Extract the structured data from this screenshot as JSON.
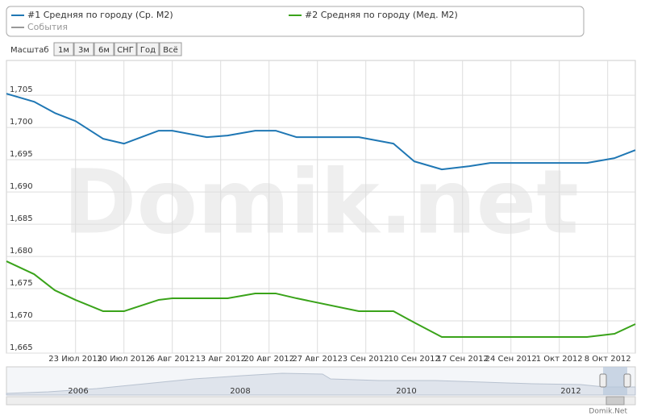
{
  "chart_data": {
    "type": "line",
    "watermark": "Domik.net",
    "legend": [
      {
        "name": "#1 Средняя по городу (Ср. М2)",
        "color": "#1f77b4"
      },
      {
        "name": "#2 Средняя по городу (Мед. М2)",
        "color": "#3aa31a"
      },
      {
        "name": "События",
        "color": "#999999"
      }
    ],
    "zoom_label": "Масштаб",
    "zoom_buttons": [
      "1м",
      "3м",
      "6м",
      "СНГ",
      "Год",
      "Всё"
    ],
    "x": [
      "2012-07-13",
      "2012-07-17",
      "2012-07-20",
      "2012-07-23",
      "2012-07-27",
      "2012-07-30",
      "2012-08-04",
      "2012-08-06",
      "2012-08-11",
      "2012-08-14",
      "2012-08-18",
      "2012-08-21",
      "2012-08-24",
      "2012-09-02",
      "2012-09-07",
      "2012-09-10",
      "2012-09-14",
      "2012-09-18",
      "2012-09-21",
      "2012-10-05",
      "2012-10-09",
      "2012-10-12"
    ],
    "series": [
      {
        "name": "#1 Средняя по городу (Ср. М2)",
        "color": "#1f77b4",
        "values": [
          1705.25,
          1704,
          1702.25,
          1701,
          1698.25,
          1697.5,
          1699.5,
          1699.5,
          1698.5,
          1698.75,
          1699.5,
          1699.5,
          1698.5,
          1698.5,
          1697.5,
          1694.75,
          1693.5,
          1694,
          1694.5,
          1694.5,
          1695.25,
          1696.5
        ]
      },
      {
        "name": "#2 Средняя по городу (Мед. М2)",
        "color": "#3aa31a",
        "values": [
          1679.25,
          1677.25,
          1674.75,
          1673.25,
          1671.5,
          1671.5,
          1673.25,
          1673.5,
          1673.5,
          1673.5,
          1674.25,
          1674.25,
          1673.5,
          1671.5,
          1671.5,
          1669.75,
          1667.5,
          1667.5,
          1667.5,
          1667.5,
          1668,
          1669.5
        ]
      }
    ],
    "xlim": [
      "2012-07-13",
      "2012-10-12"
    ],
    "xticks": [
      {
        "value": "2012-07-23",
        "label": "23 Июл 2012"
      },
      {
        "value": "2012-07-30",
        "label": "30 Июл 2012"
      },
      {
        "value": "2012-08-06",
        "label": "6 Авг 2012"
      },
      {
        "value": "2012-08-13",
        "label": "13 Авг 2012"
      },
      {
        "value": "2012-08-20",
        "label": "20 Авг 2012"
      },
      {
        "value": "2012-08-27",
        "label": "27 Авг 2012"
      },
      {
        "value": "2012-09-03",
        "label": "3 Сен 2012"
      },
      {
        "value": "2012-09-10",
        "label": "10 Сен 2012"
      },
      {
        "value": "2012-09-17",
        "label": "17 Сен 2012"
      },
      {
        "value": "2012-09-24",
        "label": "24 Сен 2012"
      },
      {
        "value": "2012-10-01",
        "label": "1 Окт 2012"
      },
      {
        "value": "2012-10-08",
        "label": "8 Окт 2012"
      }
    ],
    "ylim": [
      1665,
      1710.4
    ],
    "yticks": [
      {
        "value": 1665,
        "label": "1,665"
      },
      {
        "value": 1670,
        "label": "1,670"
      },
      {
        "value": 1675,
        "label": "1,675"
      },
      {
        "value": 1680,
        "label": "1,680"
      },
      {
        "value": 1685,
        "label": "1,685"
      },
      {
        "value": 1690,
        "label": "1,690"
      },
      {
        "value": 1695,
        "label": "1,695"
      },
      {
        "value": 1700,
        "label": "1,700"
      },
      {
        "value": 1705,
        "label": "1,705"
      }
    ],
    "grid": true,
    "navigator_labels": [
      "2006",
      "2008",
      "2010",
      "2012"
    ],
    "credit": "Domik.Net"
  }
}
